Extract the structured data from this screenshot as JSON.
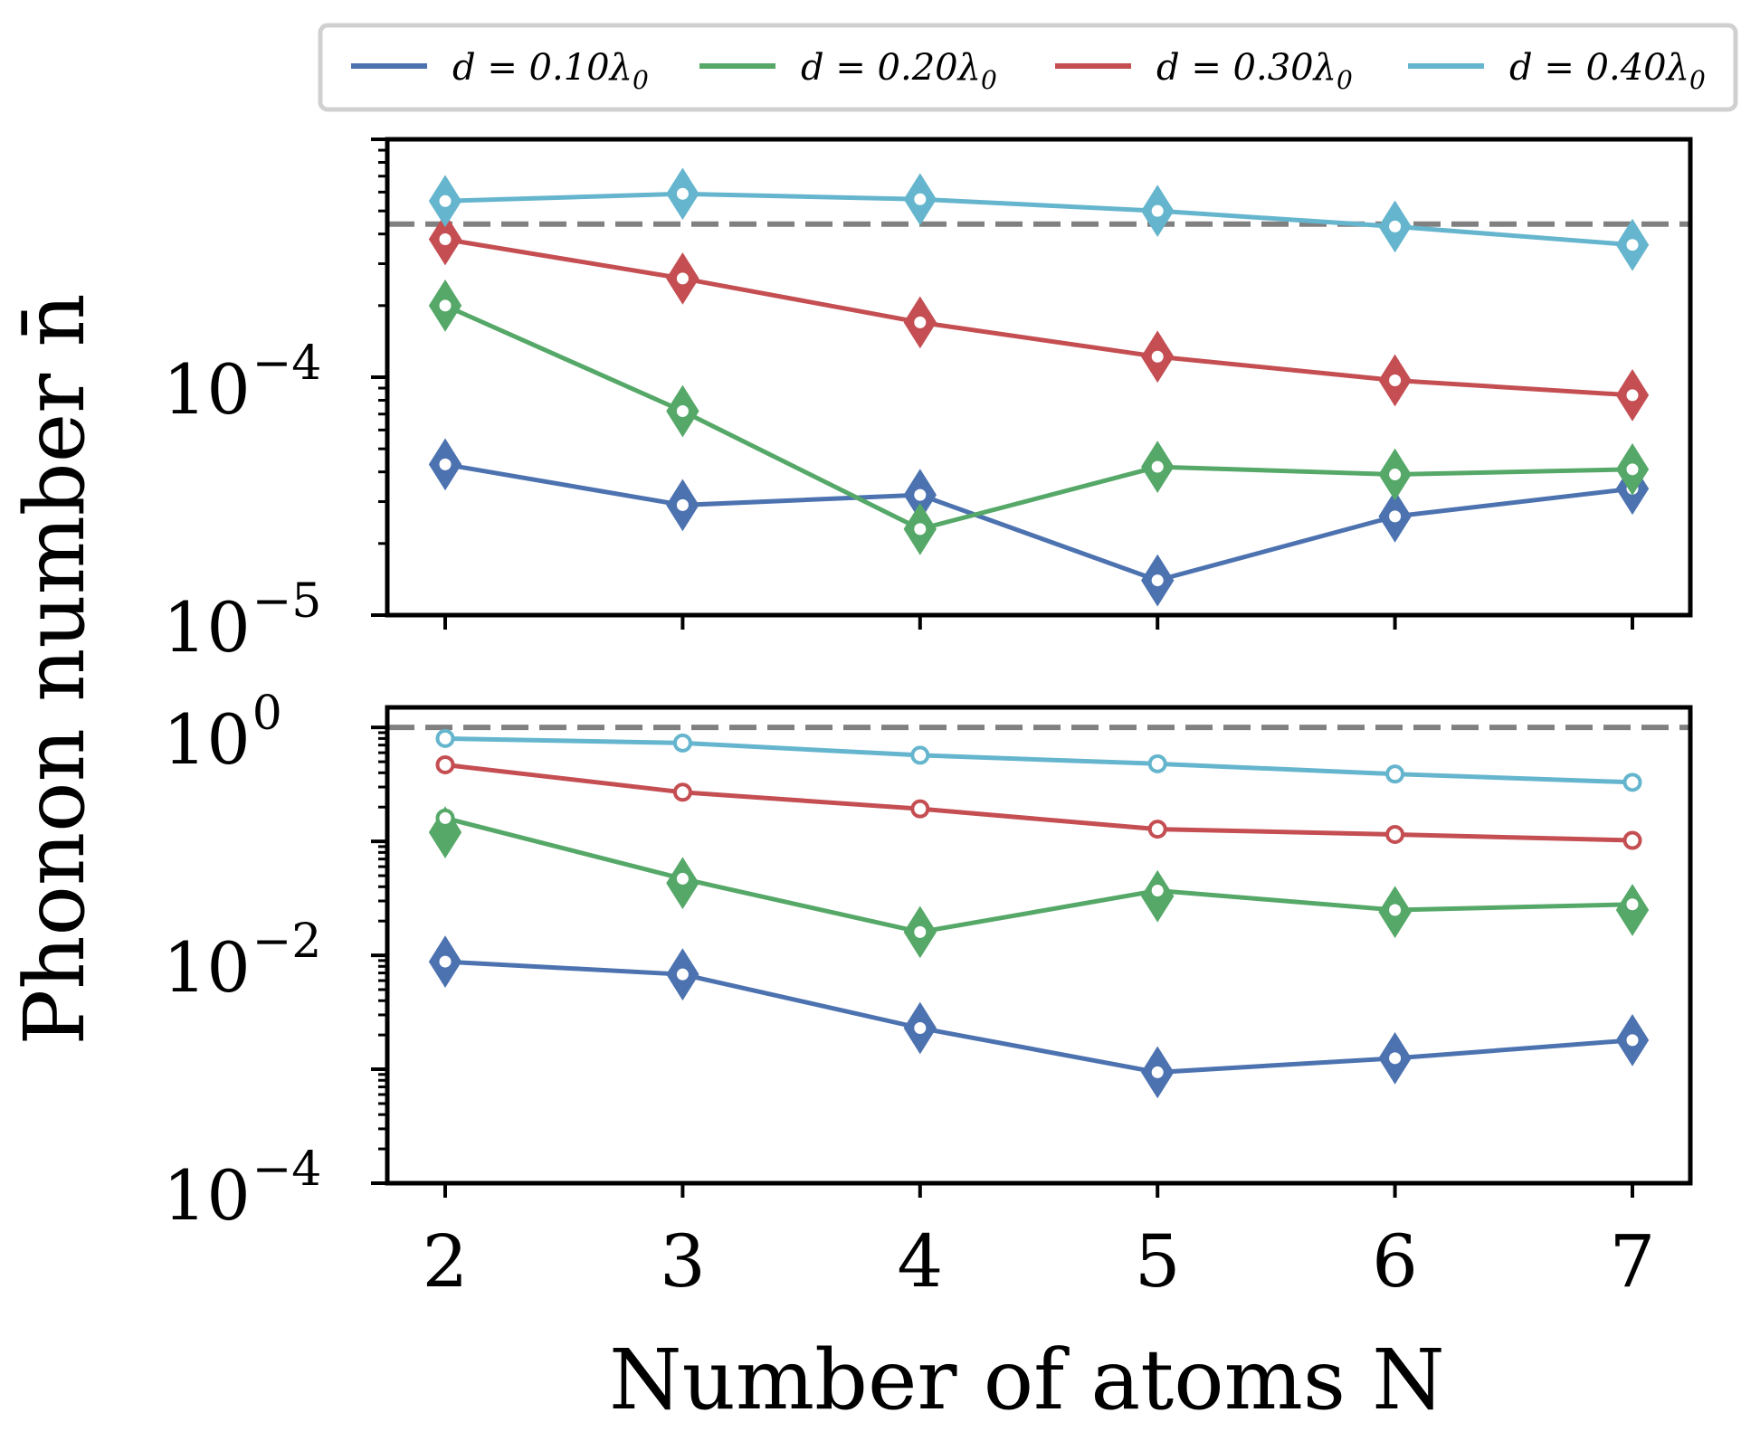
{
  "chart_data": [
    {
      "type": "line",
      "panel": "top",
      "yscale": "log",
      "ylim": [
        1e-05,
        0.001
      ],
      "y_major_ticks": [
        {
          "value": 1e-05,
          "base": "10",
          "exp": "−5"
        },
        {
          "value": 0.0001,
          "base": "10",
          "exp": "−4"
        }
      ],
      "reference_line": 0.00044,
      "x": [
        2,
        3,
        4,
        5,
        6,
        7
      ],
      "series": [
        {
          "name": "d=0.10λ0",
          "color": "#4c72b0",
          "circles": [
            4.3e-05,
            2.9e-05,
            3.2e-05,
            1.4e-05,
            2.6e-05,
            3.4e-05
          ],
          "diamonds": [
            4.3e-05,
            2.9e-05,
            3.2e-05,
            1.4e-05,
            2.6e-05,
            3.4e-05
          ]
        },
        {
          "name": "d=0.20λ0",
          "color": "#55a868",
          "circles": [
            0.0002,
            7.2e-05,
            2.3e-05,
            4.2e-05,
            3.9e-05,
            4.1e-05
          ],
          "diamonds": [
            0.0002,
            7.2e-05,
            2.3e-05,
            4.2e-05,
            3.9e-05,
            4.1e-05
          ]
        },
        {
          "name": "d=0.30λ0",
          "color": "#c44e52",
          "circles": [
            0.00038,
            0.00026,
            0.00017,
            0.000122,
            9.7e-05,
            8.4e-05
          ],
          "diamonds": [
            0.00038,
            0.00026,
            0.00017,
            0.000122,
            9.7e-05,
            8.4e-05
          ]
        },
        {
          "name": "d=0.40λ0",
          "color": "#64b5cd",
          "circles": [
            0.00055,
            0.00059,
            0.00056,
            0.0005,
            0.00043,
            0.00036
          ],
          "diamonds": [
            0.00055,
            0.00059,
            0.00056,
            0.0005,
            0.00043,
            0.00036
          ]
        }
      ]
    },
    {
      "type": "line",
      "panel": "bottom",
      "yscale": "log",
      "ylim": [
        0.0001,
        1.5
      ],
      "y_major_ticks": [
        {
          "value": 0.0001,
          "base": "10",
          "exp": "−4"
        },
        {
          "value": 0.01,
          "base": "10",
          "exp": "−2"
        },
        {
          "value": 1,
          "base": "10",
          "exp": "0"
        }
      ],
      "reference_line": 1.0,
      "x": [
        2,
        3,
        4,
        5,
        6,
        7
      ],
      "series": [
        {
          "name": "d=0.10λ0",
          "color": "#4c72b0",
          "circles": [
            0.0088,
            0.0068,
            0.0023,
            0.00094,
            0.00125,
            0.0018
          ],
          "diamonds": [
            0.0088,
            0.0068,
            0.0023,
            0.00094,
            0.00125,
            0.0018
          ]
        },
        {
          "name": "d=0.20λ0",
          "color": "#55a868",
          "circles": [
            0.16,
            0.047,
            0.016,
            0.037,
            0.025,
            0.028
          ],
          "diamonds": [
            0.12,
            0.043,
            0.016,
            0.033,
            0.024,
            0.025
          ]
        },
        {
          "name": "d=0.30λ0",
          "color": "#c44e52",
          "circles": [
            0.47,
            0.27,
            0.193,
            0.128,
            0.115,
            0.102
          ],
          "diamonds": []
        },
        {
          "name": "d=0.40λ0",
          "color": "#64b5cd",
          "circles": [
            0.8,
            0.73,
            0.57,
            0.48,
            0.39,
            0.33
          ],
          "diamonds": []
        }
      ]
    }
  ],
  "x_ticks": [
    "2",
    "3",
    "4",
    "5",
    "6",
    "7"
  ],
  "xlabel": "Number of atoms N",
  "ylabel": "Phonon number n̄",
  "legend": {
    "placement": "top",
    "entries": [
      {
        "label": "d = 0.10λ",
        "sub": "0",
        "color": "#4c72b0"
      },
      {
        "label": "d = 0.20λ",
        "sub": "0",
        "color": "#55a868"
      },
      {
        "label": "d = 0.30λ",
        "sub": "0",
        "color": "#c44e52"
      },
      {
        "label": "d = 0.40λ",
        "sub": "0",
        "color": "#64b5cd"
      }
    ]
  },
  "reference_color": "#808080"
}
